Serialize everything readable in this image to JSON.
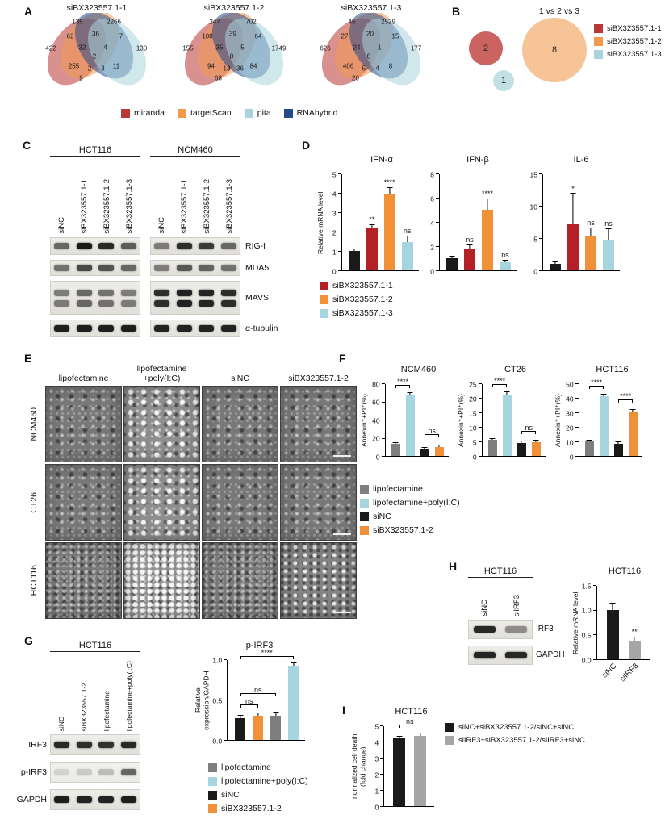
{
  "panelA": {
    "label": "A",
    "venns": [
      {
        "title": "siBX323557.1-1",
        "values": [
          "135",
          "2266",
          "62",
          "36",
          "7",
          "422",
          "32",
          "4",
          "130",
          "2",
          "255",
          "2",
          "3",
          "11",
          "9"
        ]
      },
      {
        "title": "siBX323557.1-2",
        "values": [
          "247",
          "702",
          "108",
          "39",
          "64",
          "155",
          "35",
          "5",
          "1749",
          "8",
          "94",
          "13",
          "36",
          "84",
          "68"
        ]
      },
      {
        "title": "siBX323557.1-3",
        "values": [
          "45",
          "2529",
          "27",
          "20",
          "15",
          "626",
          "24",
          "1",
          "177",
          "8",
          "406",
          "5",
          "4",
          "8",
          "20"
        ]
      }
    ],
    "sets": [
      {
        "label": "miranda",
        "color": "#b93734"
      },
      {
        "label": "targetScan",
        "color": "#f2994e"
      },
      {
        "label": "pita",
        "color": "#a9d4dd"
      },
      {
        "label": "RNAhybrid",
        "color": "#274a8d"
      }
    ]
  },
  "panelB": {
    "label": "B",
    "title": "1 vs 2 vs 3",
    "circles": [
      {
        "value": "2",
        "color": "#cb6360",
        "r": 21
      },
      {
        "value": "8",
        "color": "#f6c497",
        "r": 40
      },
      {
        "value": "1",
        "color": "#c3dfe6",
        "r": 13
      }
    ],
    "legend": [
      {
        "label": "siBX323557.1-1",
        "color": "#b93734"
      },
      {
        "label": "siBX323557.1-2",
        "color": "#f2994e"
      },
      {
        "label": "siBX323557.1-3",
        "color": "#a9d4dd"
      }
    ]
  },
  "panelC": {
    "label": "C",
    "groups": [
      {
        "title": "HCT116"
      },
      {
        "title": "NCM460"
      }
    ],
    "lanes": [
      "siNC",
      "siBX323557.1-1",
      "siBX323557.1-2",
      "siBX323557.1-3"
    ],
    "rows": [
      {
        "label": "RIG-I",
        "bands": [
          [
            0.6,
            0.97,
            0.9,
            0.65
          ],
          [
            0.5,
            0.88,
            0.82,
            0.6
          ]
        ]
      },
      {
        "label": "MDA5",
        "bands": [
          [
            0.55,
            0.75,
            0.7,
            0.6
          ],
          [
            0.5,
            0.68,
            0.62,
            0.55
          ]
        ]
      },
      {
        "label": "MAVS",
        "double": true,
        "bands": [
          [
            0.5,
            0.6,
            0.55,
            0.5
          ],
          [
            0.88,
            0.93,
            0.92,
            0.88
          ]
        ]
      },
      {
        "label": "α-tubulin",
        "bands": [
          [
            0.95,
            0.95,
            0.95,
            0.95
          ],
          [
            0.93,
            0.93,
            0.93,
            0.93
          ]
        ]
      }
    ]
  },
  "panelD": {
    "label": "D",
    "legend": [
      {
        "label": "siBX323557.1-1",
        "color": "#b32025"
      },
      {
        "label": "siBX323557.1-2",
        "color": "#f0913a"
      },
      {
        "label": "siBX323557.1-3",
        "color": "#a5d5de"
      }
    ],
    "charts": [
      {
        "title": "IFN-α",
        "ylabel": "Relative mRNA level",
        "ymax": 5,
        "yticks": [
          "0",
          "1",
          "2",
          "3",
          "4",
          "5"
        ],
        "bars": [
          {
            "v": 1.0,
            "e": 0.08,
            "c": "#1a1a1a"
          },
          {
            "v": 2.2,
            "e": 0.15,
            "c": "#b32025",
            "sig": "**"
          },
          {
            "v": 3.9,
            "e": 0.35,
            "c": "#f0913a",
            "sig": "****"
          },
          {
            "v": 1.45,
            "e": 0.3,
            "c": "#a5d5de",
            "sig": "ns"
          }
        ]
      },
      {
        "title": "IFN-β",
        "ymax": 8,
        "yticks": [
          "0",
          "2",
          "4",
          "6",
          "8"
        ],
        "bars": [
          {
            "v": 1.0,
            "e": 0.1,
            "c": "#1a1a1a"
          },
          {
            "v": 1.75,
            "e": 0.35,
            "c": "#b32025",
            "sig": "ns"
          },
          {
            "v": 5.0,
            "e": 0.85,
            "c": "#f0913a",
            "sig": "****"
          },
          {
            "v": 0.65,
            "e": 0.12,
            "c": "#a5d5de",
            "sig": "ns"
          }
        ]
      },
      {
        "title": "IL-6",
        "ymax": 15,
        "yticks": [
          "0",
          "5",
          "10",
          "15"
        ],
        "bars": [
          {
            "v": 1.0,
            "e": 0.3,
            "c": "#1a1a1a"
          },
          {
            "v": 7.2,
            "e": 4.6,
            "c": "#b32025",
            "sig": "*"
          },
          {
            "v": 5.2,
            "e": 1.3,
            "c": "#f0913a",
            "sig": "ns"
          },
          {
            "v": 4.8,
            "e": 1.6,
            "c": "#a5d5de",
            "sig": "ns"
          }
        ]
      }
    ]
  },
  "panelE": {
    "label": "E",
    "col_headers": [
      "lipofectamine",
      "lipofectamine\n+poly(I:C)",
      "siNC",
      "siBX323557.1-2"
    ],
    "row_labels": [
      "NCM460",
      "CT26",
      "HCT116"
    ]
  },
  "panelF": {
    "label": "F",
    "charts": [
      {
        "title": "NCM460",
        "ylabel": "Annexin⁺+PI⁺(%)",
        "ymax": 80,
        "yticks": [
          "0",
          "20",
          "40",
          "60",
          "80"
        ],
        "bars": [
          {
            "v": 13,
            "e": 1.2,
            "c": "#7f7f7f"
          },
          {
            "v": 68,
            "e": 1.5,
            "c": "#a5d5de"
          },
          {
            "v": 8,
            "e": 1.0,
            "c": "#1a1a1a"
          },
          {
            "v": 10,
            "e": 1.5,
            "c": "#f0913a"
          }
        ],
        "brackets": [
          {
            "a": 0,
            "b": 1,
            "label": "****",
            "y": 0.93
          },
          {
            "a": 2,
            "b": 3,
            "label": "ns",
            "y": 0.26
          }
        ]
      },
      {
        "title": "CT26",
        "ylabel": "Annexin⁺+PI⁺(%)",
        "ymax": 25,
        "yticks": [
          "0",
          "5",
          "10",
          "15",
          "20",
          "25"
        ],
        "bars": [
          {
            "v": 5.5,
            "e": 0.4,
            "c": "#7f7f7f"
          },
          {
            "v": 21,
            "e": 1.0,
            "c": "#a5d5de"
          },
          {
            "v": 4.5,
            "e": 0.4,
            "c": "#1a1a1a"
          },
          {
            "v": 4.7,
            "e": 0.5,
            "c": "#f0913a"
          }
        ],
        "brackets": [
          {
            "a": 0,
            "b": 1,
            "label": "****",
            "y": 0.95
          },
          {
            "a": 2,
            "b": 3,
            "label": "ns",
            "y": 0.3
          }
        ]
      },
      {
        "title": "HCT116",
        "ylabel": "Annexin⁺+PI⁺(%)",
        "ymax": 50,
        "yticks": [
          "0",
          "10",
          "20",
          "30",
          "40",
          "50"
        ],
        "bars": [
          {
            "v": 10,
            "e": 0.6,
            "c": "#7f7f7f"
          },
          {
            "v": 41,
            "e": 1.0,
            "c": "#a5d5de"
          },
          {
            "v": 8.5,
            "e": 0.7,
            "c": "#1a1a1a"
          },
          {
            "v": 30,
            "e": 1.5,
            "c": "#f0913a"
          }
        ],
        "brackets": [
          {
            "a": 0,
            "b": 1,
            "label": "****",
            "y": 0.92
          },
          {
            "a": 2,
            "b": 3,
            "label": "****",
            "y": 0.73
          }
        ]
      }
    ],
    "legend": [
      {
        "label": "lipofectamine",
        "color": "#7f7f7f"
      },
      {
        "label": "lipofectamine+poly(I:C)",
        "color": "#a5d5de"
      },
      {
        "label": "siNC",
        "color": "#1a1a1a"
      },
      {
        "label": "siBX323557.1-2",
        "color": "#f0913a"
      }
    ]
  },
  "panelG": {
    "label": "G",
    "blot_title": "HCT116",
    "lanes": [
      "siNC",
      "siBX323557.1-2",
      "lipofectamine",
      "lipofectamine+poly(I:C)"
    ],
    "rows": [
      {
        "label": "IRF3",
        "bands": [
          0.9,
          0.88,
          0.86,
          0.9
        ]
      },
      {
        "label": "p-IRF3",
        "bands": [
          0.12,
          0.16,
          0.22,
          0.62
        ]
      },
      {
        "label": "GAPDH",
        "bands": [
          0.95,
          0.93,
          0.93,
          0.95
        ]
      }
    ],
    "chart": {
      "title": "p-IRF3",
      "ylabel": "Relative expression/GAPDH",
      "ymax": 1.0,
      "yticks": [
        "0.0",
        "0.5",
        "1.0"
      ],
      "bars": [
        {
          "v": 0.27,
          "e": 0.03,
          "c": "#1a1a1a"
        },
        {
          "v": 0.3,
          "e": 0.03,
          "c": "#f0913a"
        },
        {
          "v": 0.3,
          "e": 0.04,
          "c": "#7f7f7f"
        },
        {
          "v": 0.92,
          "e": 0.03,
          "c": "#a5d5de"
        }
      ],
      "brackets": [
        {
          "a": 0,
          "b": 1,
          "label": "ns",
          "y": 0.4
        },
        {
          "a": 0,
          "b": 2,
          "label": "ns",
          "y": 0.54
        },
        {
          "a": 0,
          "b": 3,
          "label": "****",
          "y": 1.0
        }
      ]
    },
    "legend": [
      {
        "label": "lipofectamine",
        "color": "#7f7f7f"
      },
      {
        "label": "lipofectamine+poly(I:C)",
        "color": "#a5d5de"
      },
      {
        "label": "siNC",
        "color": "#1a1a1a"
      },
      {
        "label": "siBX323557.1-2",
        "color": "#f0913a"
      }
    ]
  },
  "panelH": {
    "label": "H",
    "blot_title": "HCT116",
    "lanes": [
      "siNC",
      "siIRF3"
    ],
    "rows": [
      {
        "label": "IRF3",
        "bands": [
          0.9,
          0.42
        ]
      },
      {
        "label": "GAPDH",
        "bands": [
          0.92,
          0.9
        ]
      }
    ],
    "chart": {
      "title": "HCT116",
      "ylabel": "Relative mRNA level",
      "ymax": 1.5,
      "yticks": [
        "0.0",
        "0.5",
        "1.0",
        "1.5"
      ],
      "xlabels": [
        "siNC",
        "siIRF3"
      ],
      "bars": [
        {
          "v": 1.0,
          "e": 0.13,
          "c": "#1a1a1a"
        },
        {
          "v": 0.38,
          "e": 0.06,
          "c": "#a6a6a6",
          "sig": "**"
        }
      ]
    }
  },
  "panelI": {
    "label": "I",
    "chart": {
      "title": "HCT116",
      "ylabel": "normalized cell death\n(fold change)",
      "ymax": 5,
      "yticks": [
        "0",
        "1",
        "2",
        "3",
        "4",
        "5"
      ],
      "bars": [
        {
          "v": 4.2,
          "e": 0.1,
          "c": "#1a1a1a"
        },
        {
          "v": 4.35,
          "e": 0.15,
          "c": "#a6a6a6"
        }
      ],
      "brackets": [
        {
          "a": 0,
          "b": 1,
          "label": "ns",
          "y": 0.97
        }
      ]
    },
    "legend": [
      {
        "label": "siNC+siBX323557.1-2/siNC+siNC",
        "color": "#1a1a1a"
      },
      {
        "label": "siIRF3+siBX323557.1-2/siIRF3+siNC",
        "color": "#a6a6a6"
      }
    ]
  }
}
